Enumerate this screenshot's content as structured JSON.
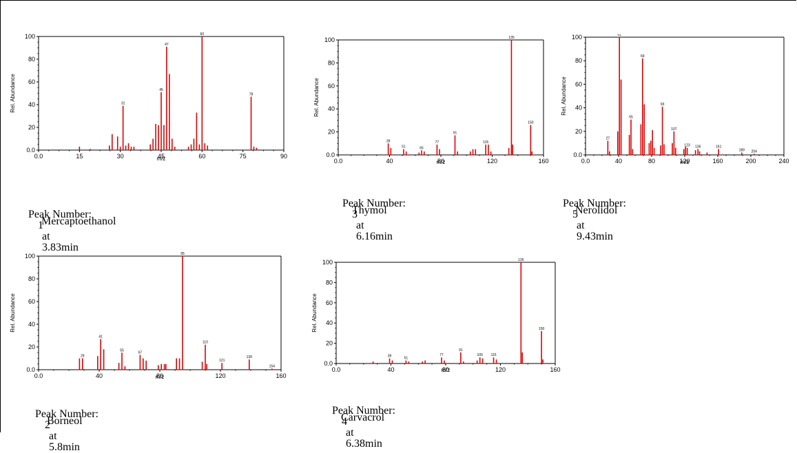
{
  "chart_data": [
    {
      "type": "bar",
      "xlabel": "m/z",
      "ylabel": "Rel. Abundance",
      "xlim": [
        0,
        90
      ],
      "ylim": [
        0,
        100
      ],
      "xticks": [
        "0.0",
        "15",
        "30",
        "45",
        "60",
        "75",
        "90"
      ],
      "yticks": [
        "0.0",
        "20",
        "40",
        "60",
        "80",
        "100"
      ],
      "caption": {
        "prefix": "Peak Number:",
        "number": "1",
        "at": "at",
        "time": "3.83min"
      },
      "compound": "Mercaptoethanol",
      "peaks": [
        [
          15,
          3
        ],
        [
          19,
          1
        ],
        [
          26,
          4
        ],
        [
          27,
          14
        ],
        [
          29,
          12
        ],
        [
          30,
          3
        ],
        [
          31,
          39
        ],
        [
          32,
          4
        ],
        [
          33,
          6
        ],
        [
          34,
          3
        ],
        [
          35,
          3
        ],
        [
          41,
          5
        ],
        [
          42,
          10
        ],
        [
          43,
          23
        ],
        [
          44,
          22
        ],
        [
          45,
          51
        ],
        [
          46,
          22
        ],
        [
          47,
          91
        ],
        [
          48,
          67
        ],
        [
          49,
          10
        ],
        [
          50,
          3
        ],
        [
          55,
          3
        ],
        [
          56,
          5
        ],
        [
          57,
          10
        ],
        [
          58,
          33
        ],
        [
          59,
          5
        ],
        [
          60,
          100
        ],
        [
          61,
          6
        ],
        [
          62,
          4
        ],
        [
          78,
          47
        ],
        [
          79,
          3
        ],
        [
          80,
          2
        ]
      ],
      "labels": [
        [
          31,
          39,
          "31"
        ],
        [
          45,
          51,
          "45"
        ],
        [
          47,
          91,
          "47"
        ],
        [
          60,
          100,
          "60"
        ],
        [
          78,
          47,
          "78"
        ]
      ]
    },
    {
      "type": "bar",
      "xlabel": "m/z",
      "ylabel": "Rel. Abundance",
      "xlim": [
        0,
        160
      ],
      "ylim": [
        0,
        100
      ],
      "xticks": [
        "0.0",
        "40",
        "80",
        "120",
        "160"
      ],
      "yticks": [
        "0.0",
        "20",
        "40",
        "60",
        "80",
        "100"
      ],
      "caption": {
        "prefix": "Peak Number:",
        "number": "3",
        "at": "at",
        "time": "6.16min"
      },
      "compound": "Thymol",
      "peaks": [
        [
          39,
          10
        ],
        [
          41,
          6
        ],
        [
          51,
          5
        ],
        [
          53,
          3
        ],
        [
          63,
          2
        ],
        [
          65,
          4
        ],
        [
          67,
          3
        ],
        [
          77,
          9
        ],
        [
          79,
          5
        ],
        [
          91,
          17
        ],
        [
          93,
          3
        ],
        [
          103,
          3
        ],
        [
          105,
          5
        ],
        [
          107,
          5
        ],
        [
          115,
          9
        ],
        [
          117,
          9
        ],
        [
          119,
          3
        ],
        [
          133,
          6
        ],
        [
          135,
          100
        ],
        [
          136,
          9
        ],
        [
          150,
          26
        ],
        [
          151,
          3
        ]
      ],
      "labels": [
        [
          39,
          10,
          "39"
        ],
        [
          51,
          5,
          "51"
        ],
        [
          65,
          4,
          "65"
        ],
        [
          77,
          9,
          "77"
        ],
        [
          91,
          17,
          "91"
        ],
        [
          115,
          9,
          "115"
        ],
        [
          135,
          100,
          "135"
        ],
        [
          150,
          26,
          "150"
        ]
      ]
    },
    {
      "type": "bar",
      "xlabel": "m/z",
      "ylabel": "Rel. Abundance",
      "xlim": [
        0,
        240
      ],
      "ylim": [
        0,
        100
      ],
      "xticks": [
        "0.0",
        "40",
        "80",
        "120",
        "160",
        "200",
        "240"
      ],
      "yticks": [
        "0.0",
        "20",
        "40",
        "60",
        "80",
        "100"
      ],
      "caption": {
        "prefix": "Peak Number:",
        "number": "5",
        "at": "at",
        "time": "9.43min"
      },
      "compound": "Nerolidol",
      "peaks": [
        [
          27,
          12
        ],
        [
          29,
          3
        ],
        [
          39,
          20
        ],
        [
          41,
          100
        ],
        [
          43,
          64
        ],
        [
          53,
          17
        ],
        [
          55,
          30
        ],
        [
          57,
          5
        ],
        [
          67,
          26
        ],
        [
          69,
          82
        ],
        [
          71,
          43
        ],
        [
          77,
          10
        ],
        [
          79,
          12
        ],
        [
          81,
          21
        ],
        [
          83,
          6
        ],
        [
          91,
          8
        ],
        [
          93,
          41
        ],
        [
          95,
          9
        ],
        [
          105,
          10
        ],
        [
          107,
          20
        ],
        [
          109,
          6
        ],
        [
          119,
          5
        ],
        [
          121,
          7
        ],
        [
          123,
          6
        ],
        [
          133,
          4
        ],
        [
          136,
          5
        ],
        [
          138,
          3
        ],
        [
          147,
          2
        ],
        [
          161,
          5
        ],
        [
          189,
          2
        ],
        [
          204,
          1
        ]
      ],
      "labels": [
        [
          27,
          12,
          "27"
        ],
        [
          41,
          100,
          "41"
        ],
        [
          55,
          30,
          "55"
        ],
        [
          69,
          82,
          "69"
        ],
        [
          93,
          41,
          "93"
        ],
        [
          107,
          20,
          "107"
        ],
        [
          123,
          6,
          "123"
        ],
        [
          136,
          5,
          "136"
        ],
        [
          161,
          5,
          "161"
        ],
        [
          189,
          2,
          "189"
        ],
        [
          204,
          1,
          "204"
        ]
      ]
    },
    {
      "type": "bar",
      "xlabel": "m/z",
      "ylabel": "Rel. Abundance",
      "xlim": [
        0,
        160
      ],
      "ylim": [
        0,
        100
      ],
      "xticks": [
        "0.0",
        "40",
        "80",
        "120",
        "160"
      ],
      "yticks": [
        "0.0",
        "20",
        "40",
        "60",
        "80",
        "100"
      ],
      "caption": {
        "prefix": "Peak Number:",
        "number": "2",
        "at": "at",
        "time": "5.8min"
      },
      "compound": "Borneol",
      "peaks": [
        [
          27,
          10
        ],
        [
          29,
          10
        ],
        [
          39,
          12
        ],
        [
          41,
          27
        ],
        [
          43,
          18
        ],
        [
          53,
          6
        ],
        [
          55,
          15
        ],
        [
          57,
          3
        ],
        [
          67,
          13
        ],
        [
          69,
          10
        ],
        [
          71,
          8
        ],
        [
          79,
          4
        ],
        [
          81,
          5
        ],
        [
          83,
          5
        ],
        [
          84,
          5
        ],
        [
          91,
          10
        ],
        [
          93,
          10
        ],
        [
          95,
          100
        ],
        [
          108,
          7
        ],
        [
          110,
          22
        ],
        [
          111,
          5
        ],
        [
          121,
          6
        ],
        [
          139,
          9
        ],
        [
          154,
          1
        ]
      ],
      "labels": [
        [
          29,
          10,
          "29"
        ],
        [
          41,
          27,
          "41"
        ],
        [
          55,
          15,
          "55"
        ],
        [
          67,
          13,
          "67"
        ],
        [
          95,
          100,
          "95"
        ],
        [
          110,
          22,
          "110"
        ],
        [
          121,
          6,
          "121"
        ],
        [
          139,
          9,
          "139"
        ],
        [
          154,
          1,
          "154"
        ]
      ]
    },
    {
      "type": "bar",
      "xlabel": "m/z",
      "ylabel": "Rel. Abundance",
      "xlim": [
        0,
        160
      ],
      "ylim": [
        0,
        100
      ],
      "xticks": [
        "0.0",
        "40",
        "80",
        "120",
        "160"
      ],
      "yticks": [
        "0.0",
        "20",
        "40",
        "60",
        "80",
        "100"
      ],
      "caption": {
        "prefix": "Peak Number:",
        "number": "4",
        "at": "at",
        "time": "6.38min"
      },
      "compound": "Carvacrol",
      "peaks": [
        [
          27,
          2
        ],
        [
          39,
          5
        ],
        [
          41,
          3
        ],
        [
          51,
          3
        ],
        [
          53,
          2
        ],
        [
          63,
          2
        ],
        [
          65,
          3
        ],
        [
          77,
          6
        ],
        [
          79,
          3
        ],
        [
          91,
          11
        ],
        [
          93,
          2
        ],
        [
          103,
          3
        ],
        [
          105,
          6
        ],
        [
          107,
          5
        ],
        [
          115,
          6
        ],
        [
          117,
          4
        ],
        [
          135,
          100
        ],
        [
          136,
          11
        ],
        [
          150,
          32
        ],
        [
          151,
          4
        ]
      ],
      "labels": [
        [
          39,
          5,
          "39"
        ],
        [
          51,
          3,
          "51"
        ],
        [
          77,
          6,
          "77"
        ],
        [
          91,
          11,
          "91"
        ],
        [
          105,
          6,
          "105"
        ],
        [
          115,
          6,
          "115"
        ],
        [
          135,
          100,
          "135"
        ],
        [
          150,
          32,
          "150"
        ]
      ]
    }
  ],
  "colors": {
    "peak": "#e00000",
    "axis": "#000000"
  }
}
